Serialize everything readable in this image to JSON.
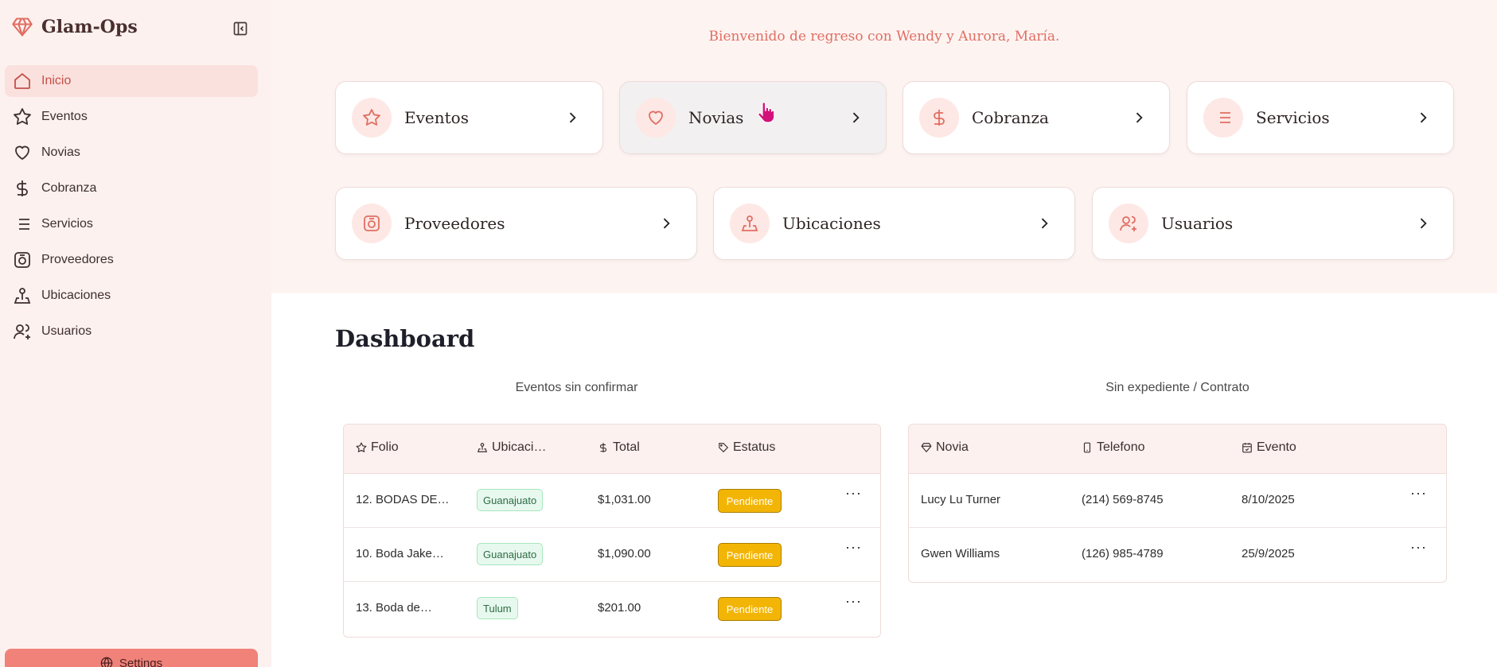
{
  "app": {
    "name": "Glam-Ops"
  },
  "colors": {
    "accent": "#e16e62",
    "active_bg": "#fbe1dd",
    "pending": "#f3b505",
    "location_badge": "#e7f9ee"
  },
  "sidebar": {
    "items": [
      {
        "label": "Inicio",
        "icon": "home-icon",
        "active": true
      },
      {
        "label": "Eventos",
        "icon": "star-icon"
      },
      {
        "label": "Novias",
        "icon": "heart-icon"
      },
      {
        "label": "Cobranza",
        "icon": "dollar-icon"
      },
      {
        "label": "Servicios",
        "icon": "list-icon"
      },
      {
        "label": "Proveedores",
        "icon": "camera-icon"
      },
      {
        "label": "Ubicaciones",
        "icon": "map-pin-icon"
      },
      {
        "label": "Usuarios",
        "icon": "users-icon"
      }
    ],
    "settings_label": "Settings"
  },
  "welcome": "Bienvenido de regreso con Wendy y Aurora, María.",
  "cards": [
    {
      "label": "Eventos",
      "icon": "star-icon"
    },
    {
      "label": "Novias",
      "icon": "heart-icon"
    },
    {
      "label": "Cobranza",
      "icon": "dollar-icon"
    },
    {
      "label": "Servicios",
      "icon": "list-icon"
    },
    {
      "label": "Proveedores",
      "icon": "camera-icon"
    },
    {
      "label": "Ubicaciones",
      "icon": "map-pin-icon"
    },
    {
      "label": "Usuarios",
      "icon": "users-icon"
    }
  ],
  "dashboard": {
    "title": "Dashboard",
    "events": {
      "title": "Eventos sin confirmar",
      "columns": [
        "Folio",
        "Ubicaci…",
        "Total",
        "Estatus"
      ],
      "rows": [
        {
          "folio": "12. BODAS DE…",
          "location": "Guanajuato",
          "total": "$1,031.00",
          "status": "Pendiente"
        },
        {
          "folio": "10. Boda Jake…",
          "location": "Guanajuato",
          "total": "$1,090.00",
          "status": "Pendiente"
        },
        {
          "folio": "13. Boda de…",
          "location": "Tulum",
          "total": "$201.00",
          "status": "Pendiente"
        }
      ]
    },
    "brides": {
      "title": "Sin expediente / Contrato",
      "columns": [
        "Novia",
        "Telefono",
        "Evento"
      ],
      "rows": [
        {
          "name": "Lucy Lu Turner",
          "phone": "(214) 569-8745",
          "event": "8/10/2025"
        },
        {
          "name": "Gwen Williams",
          "phone": "(126) 985-4789",
          "event": "25/9/2025"
        }
      ]
    }
  }
}
